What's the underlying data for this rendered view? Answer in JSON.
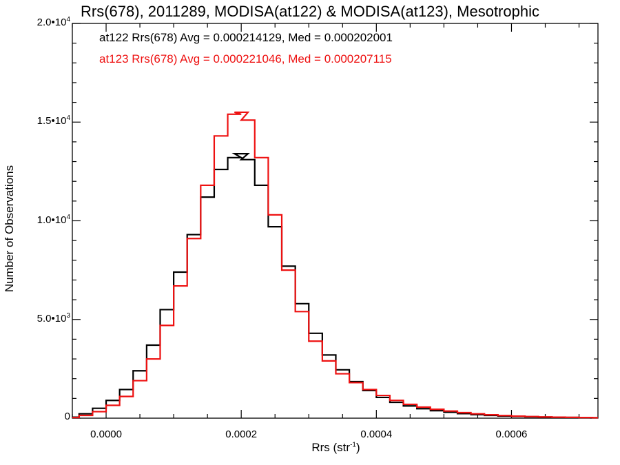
{
  "chart_data": {
    "type": "line",
    "title": "Rrs(678), 2011289, MODISA(at122) & MODISA(at123), Mesotrophic",
    "xlabel_prefix": "Rrs (str",
    "xlabel_sup": "-1",
    "xlabel_suffix": ")",
    "ylabel": "Number of Observations",
    "xlim": [
      -5e-05,
      0.000728
    ],
    "ylim": [
      0,
      20000
    ],
    "x_ticks": [
      {
        "value": 0.0,
        "label": "0.0000"
      },
      {
        "value": 0.0002,
        "label": "0.0002"
      },
      {
        "value": 0.0004,
        "label": "0.0004"
      },
      {
        "value": 0.0006,
        "label": "0.0006"
      }
    ],
    "y_ticks": [
      {
        "value": 0,
        "mantissa": "0",
        "exp": ""
      },
      {
        "value": 5000,
        "mantissa": "5.0•10",
        "exp": "3"
      },
      {
        "value": 10000,
        "mantissa": "1.0•10",
        "exp": "4"
      },
      {
        "value": 15000,
        "mantissa": "1.5•10",
        "exp": "4"
      },
      {
        "value": 20000,
        "mantissa": "2.0•10",
        "exp": "4"
      }
    ],
    "annotations": [
      {
        "text": "at122 Rrs(678) Avg = 0.000214129, Med = 0.000202001",
        "color": "#000000"
      },
      {
        "text": "at123 Rrs(678) Avg = 0.000221046, Med = 0.000207115",
        "color": "#ee1111"
      }
    ],
    "series": [
      {
        "color": "#000000",
        "x": [
          -5e-05,
          -3e-05,
          -1e-05,
          1e-05,
          3e-05,
          5e-05,
          7e-05,
          9e-05,
          0.00011,
          0.00013,
          0.00015,
          0.00017,
          0.00019,
          0.0002,
          0.00021,
          0.00023,
          0.00025,
          0.00027,
          0.00029,
          0.00031,
          0.00033,
          0.00035,
          0.00037,
          0.00039,
          0.00041,
          0.00043,
          0.00045,
          0.00047,
          0.00049,
          0.00051,
          0.00053,
          0.00055,
          0.00057,
          0.00059,
          0.00061,
          0.00063,
          0.00065,
          0.00067,
          0.00069,
          0.00071,
          0.00073
        ],
        "y": [
          50,
          220,
          500,
          900,
          1450,
          2400,
          3700,
          5500,
          7400,
          9300,
          11200,
          12600,
          13200,
          13400,
          13100,
          11800,
          9700,
          7700,
          5800,
          4300,
          3200,
          2450,
          1850,
          1400,
          1050,
          800,
          620,
          480,
          380,
          300,
          230,
          180,
          140,
          110,
          90,
          70,
          55,
          45,
          35,
          28,
          20
        ]
      },
      {
        "color": "#ee1111",
        "x": [
          -5e-05,
          -3e-05,
          -1e-05,
          1e-05,
          3e-05,
          5e-05,
          7e-05,
          9e-05,
          0.00011,
          0.00013,
          0.00015,
          0.00017,
          0.00019,
          0.0002,
          0.00021,
          0.00023,
          0.00025,
          0.00027,
          0.00029,
          0.00031,
          0.00033,
          0.00035,
          0.00037,
          0.00039,
          0.00041,
          0.00043,
          0.00045,
          0.00047,
          0.00049,
          0.00051,
          0.00053,
          0.00055,
          0.00057,
          0.00059,
          0.00061,
          0.00063,
          0.00065,
          0.00067,
          0.00069,
          0.00071,
          0.00073
        ],
        "y": [
          30,
          140,
          330,
          650,
          1100,
          1900,
          3000,
          4700,
          6700,
          9100,
          11800,
          14300,
          15400,
          15500,
          15100,
          13200,
          10300,
          7500,
          5400,
          3900,
          2900,
          2250,
          1800,
          1450,
          1150,
          900,
          700,
          560,
          450,
          360,
          280,
          220,
          170,
          130,
          100,
          80,
          60,
          48,
          38,
          30,
          22
        ]
      }
    ],
    "grid": false,
    "legend": "none"
  }
}
